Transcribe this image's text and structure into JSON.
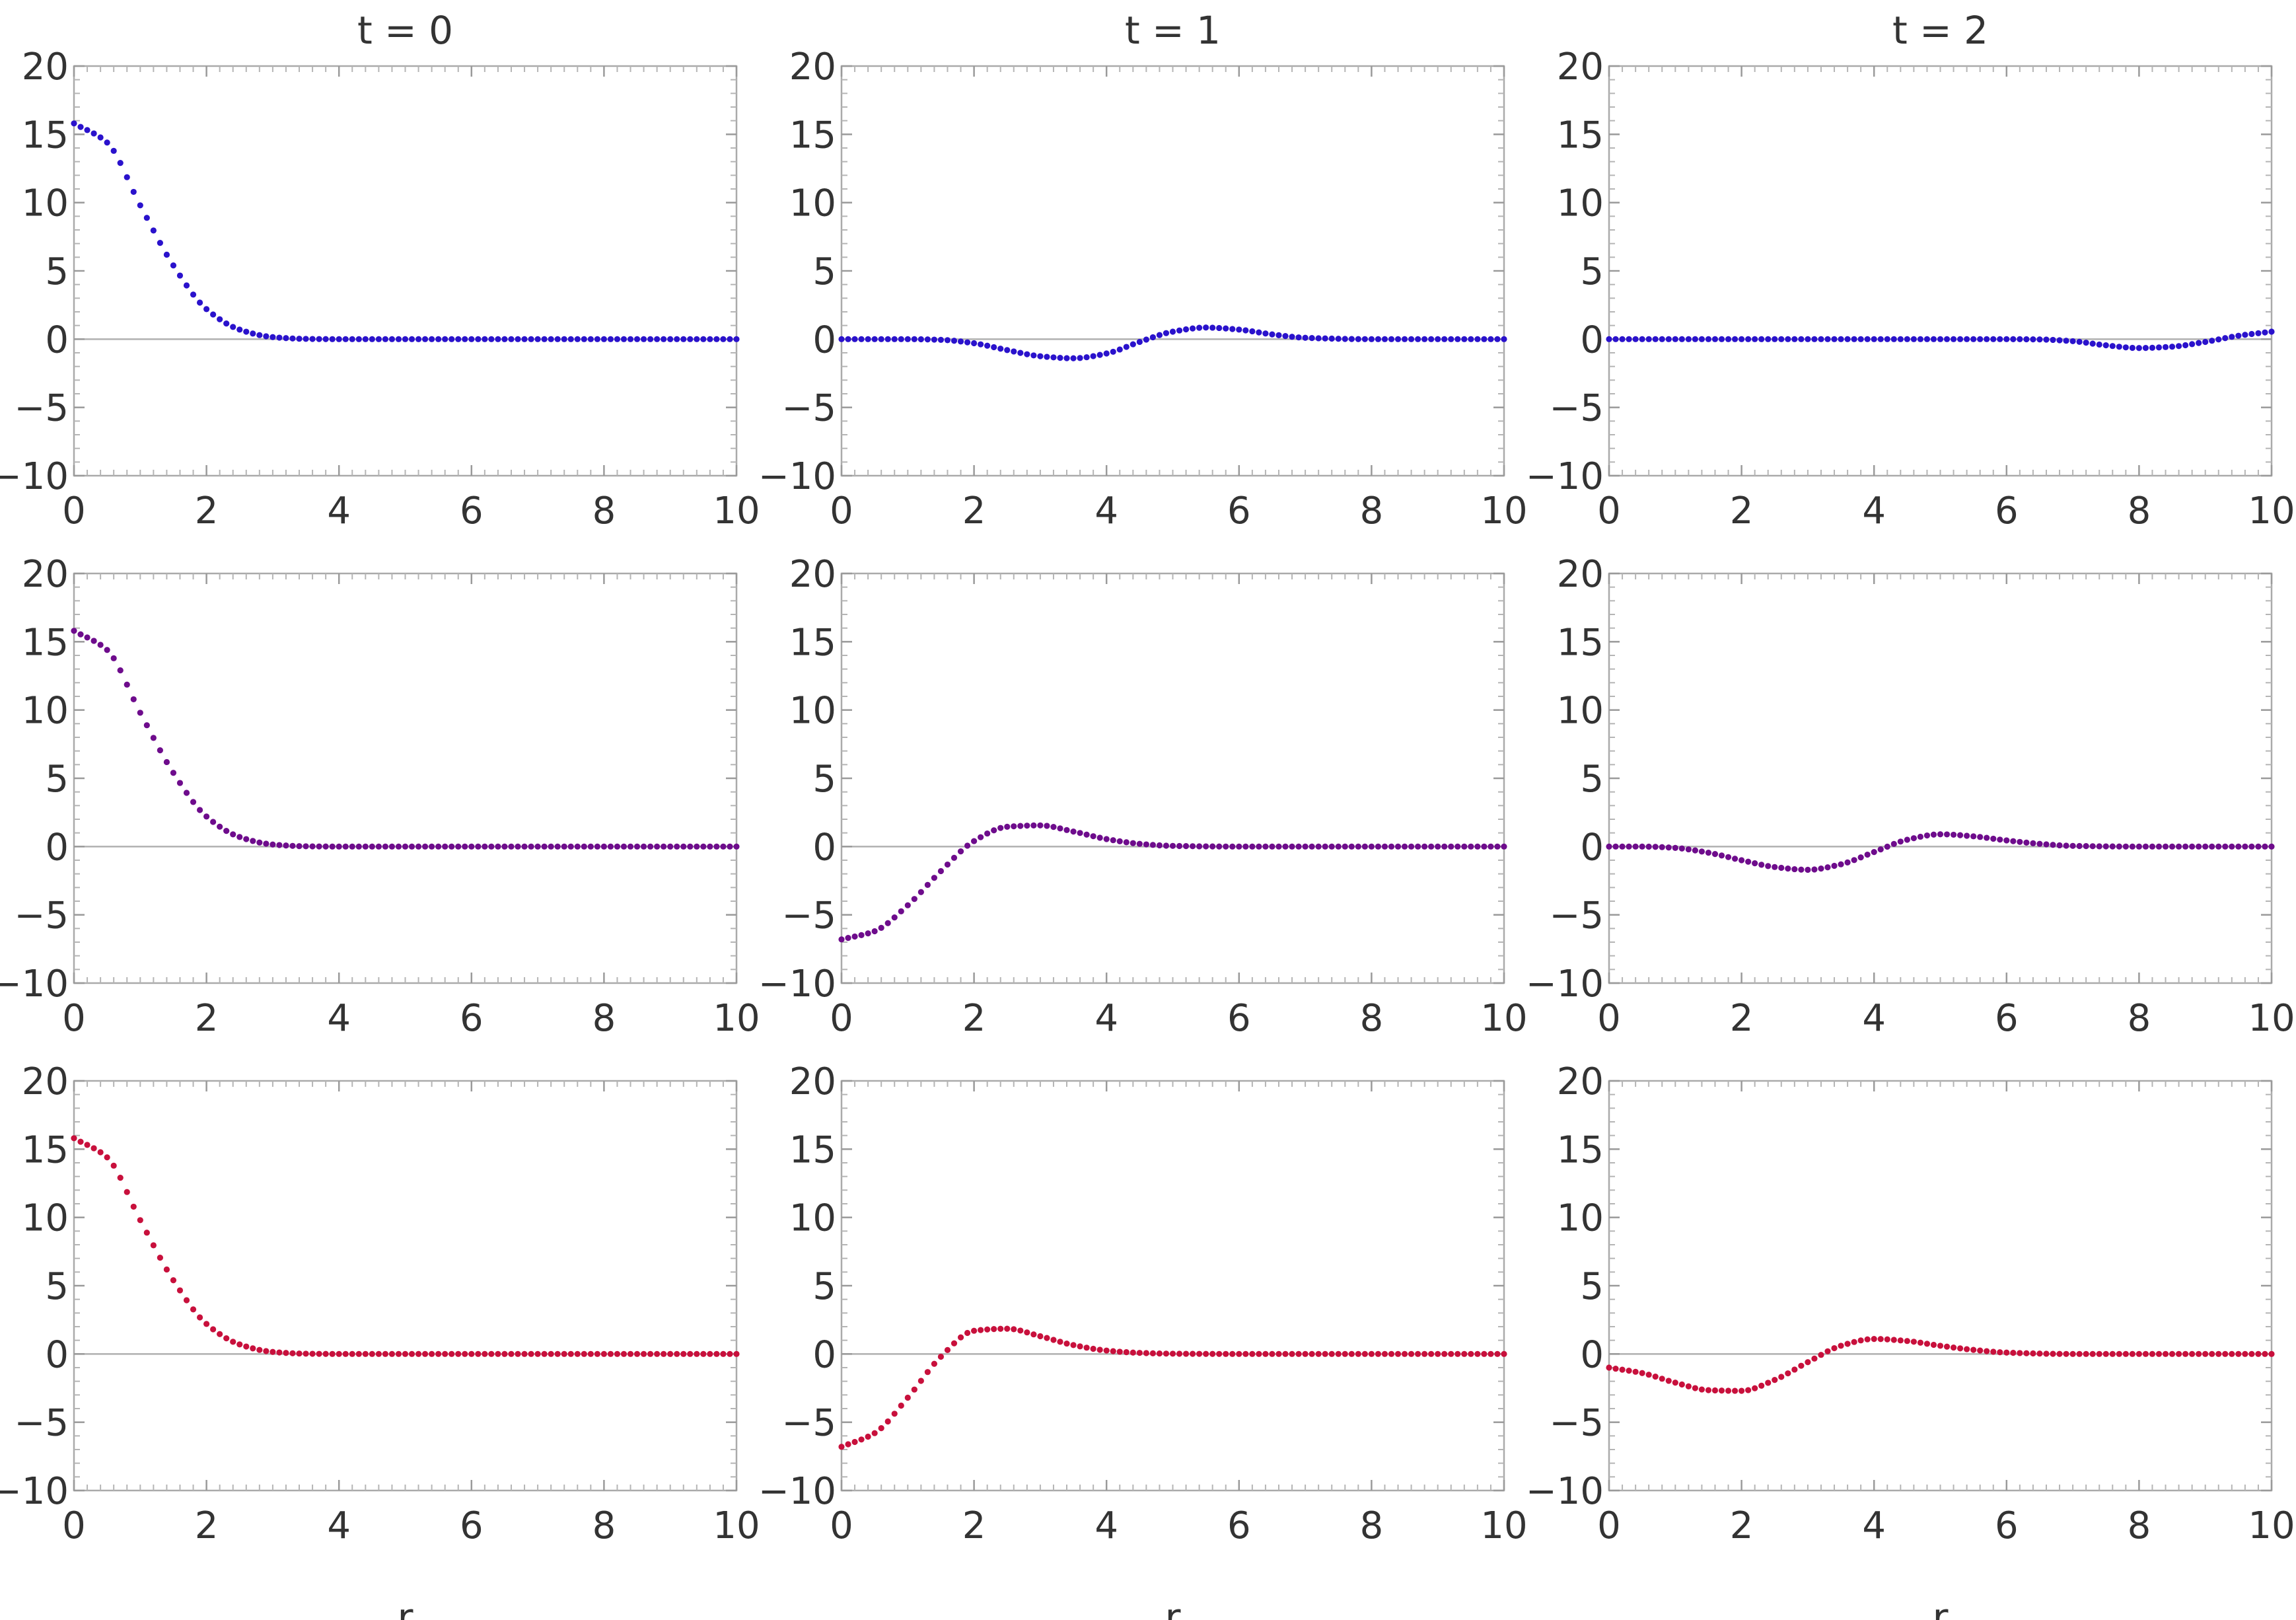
{
  "chart_data": {
    "type": "scatter",
    "layout": {
      "rows": 3,
      "columns": 3
    },
    "column_titles": [
      "t = 0",
      "t = 1",
      "t = 2"
    ],
    "xlabel": "r",
    "xlim": [
      0,
      10
    ],
    "ylim": [
      -10,
      20
    ],
    "x_ticks": [
      0,
      2,
      4,
      6,
      8,
      10
    ],
    "y_ticks": [
      -10,
      -5,
      0,
      5,
      10,
      15,
      20
    ],
    "x_tick_labels": [
      "0",
      "2",
      "4",
      "6",
      "8",
      "10"
    ],
    "y_tick_labels": [
      "−10",
      "−5",
      "0",
      "5",
      "10",
      "15",
      "20"
    ],
    "grid": false,
    "zero_line": true,
    "row_colors": [
      "#2a12cc",
      "#6e0c8c",
      "#c8103c"
    ],
    "point_spacing": 0.1,
    "panels": [
      {
        "row": 0,
        "col": 0,
        "x": [
          0,
          0.5,
          1,
          1.5,
          2,
          2.5,
          3,
          3.5,
          4,
          6,
          8,
          10
        ],
        "y": [
          15.8,
          14.4,
          9.8,
          5.4,
          2.2,
          0.7,
          0.15,
          0.02,
          0,
          0,
          0,
          0
        ]
      },
      {
        "row": 0,
        "col": 1,
        "x": [
          0,
          1,
          1.5,
          2,
          2.5,
          3,
          3.5,
          4,
          4.5,
          5,
          5.5,
          6,
          6.5,
          7,
          8,
          10
        ],
        "y": [
          0,
          0,
          -0.05,
          -0.3,
          -0.8,
          -1.25,
          -1.4,
          -1.05,
          -0.2,
          0.55,
          0.85,
          0.7,
          0.35,
          0.1,
          0,
          0
        ]
      },
      {
        "row": 0,
        "col": 2,
        "x": [
          0,
          6,
          6.5,
          7,
          7.5,
          8,
          8.5,
          9,
          9.5,
          10
        ],
        "y": [
          0,
          0,
          -0.02,
          -0.15,
          -0.45,
          -0.65,
          -0.55,
          -0.2,
          0.25,
          0.55
        ]
      },
      {
        "row": 1,
        "col": 0,
        "x": [
          0,
          0.5,
          1,
          1.5,
          2,
          2.5,
          3,
          3.5,
          4,
          6,
          8,
          10
        ],
        "y": [
          15.8,
          14.4,
          9.8,
          5.4,
          2.2,
          0.7,
          0.15,
          0.02,
          0,
          0,
          0,
          0
        ]
      },
      {
        "row": 1,
        "col": 1,
        "x": [
          0,
          0.5,
          1,
          1.5,
          2,
          2.5,
          3,
          3.5,
          4,
          4.5,
          5,
          6,
          8,
          10
        ],
        "y": [
          -6.8,
          -6.2,
          -4.3,
          -1.8,
          0.4,
          1.45,
          1.55,
          1.1,
          0.55,
          0.2,
          0.05,
          0,
          0,
          0
        ]
      },
      {
        "row": 1,
        "col": 2,
        "x": [
          0,
          0.5,
          1,
          1.5,
          2,
          2.5,
          3,
          3.5,
          4,
          4.5,
          5,
          5.5,
          6,
          6.5,
          7,
          8,
          10
        ],
        "y": [
          0,
          0,
          -0.1,
          -0.45,
          -1.0,
          -1.5,
          -1.7,
          -1.3,
          -0.4,
          0.5,
          0.9,
          0.75,
          0.45,
          0.2,
          0.05,
          0,
          0
        ]
      },
      {
        "row": 2,
        "col": 0,
        "x": [
          0,
          0.5,
          1,
          1.5,
          2,
          2.5,
          3,
          3.5,
          4,
          6,
          8,
          10
        ],
        "y": [
          15.8,
          14.4,
          9.8,
          5.4,
          2.2,
          0.7,
          0.15,
          0.02,
          0,
          0,
          0,
          0
        ]
      },
      {
        "row": 2,
        "col": 1,
        "x": [
          0,
          0.5,
          1,
          1.5,
          2,
          2.5,
          3,
          3.5,
          4,
          4.5,
          5,
          6,
          8,
          10
        ],
        "y": [
          -6.8,
          -5.8,
          -3.2,
          -0.2,
          1.7,
          1.85,
          1.3,
          0.65,
          0.25,
          0.08,
          0.02,
          0,
          0,
          0
        ]
      },
      {
        "row": 2,
        "col": 2,
        "x": [
          0,
          0.5,
          1,
          1.5,
          2,
          2.5,
          3,
          3.5,
          4,
          4.5,
          5,
          5.5,
          6,
          7,
          8,
          10
        ],
        "y": [
          -1.0,
          -1.4,
          -2.1,
          -2.65,
          -2.7,
          -1.9,
          -0.6,
          0.6,
          1.1,
          0.95,
          0.6,
          0.3,
          0.1,
          0,
          0,
          0
        ]
      }
    ]
  }
}
